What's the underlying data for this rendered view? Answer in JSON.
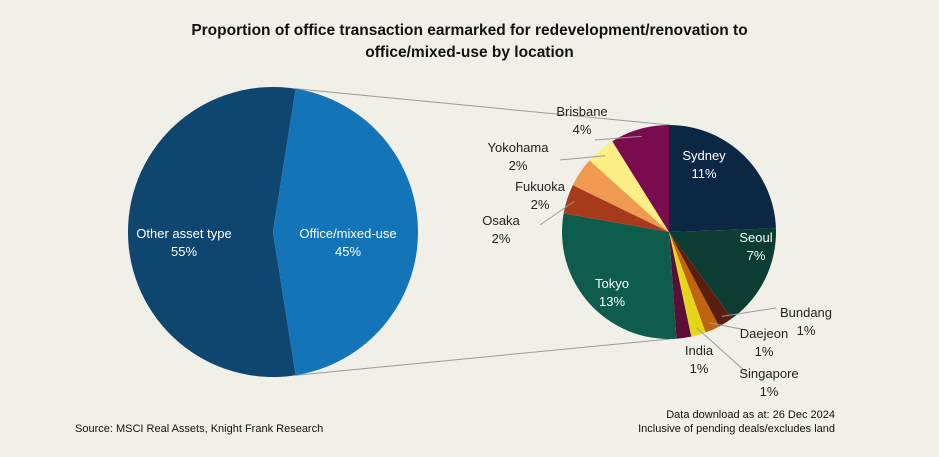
{
  "chart_data": {
    "type": "pie",
    "title_line1": "Proportion of office transaction earmarked for redevelopment/renovation to",
    "title_line2": "office/mixed-use by location",
    "main": [
      {
        "name": "Other asset type",
        "value": 55,
        "label": "55%",
        "color": "#0e4670",
        "text_color": "#ffffff"
      },
      {
        "name": "Office/mixed-use",
        "value": 45,
        "label": "45%",
        "color": "#1474b8",
        "text_color": "#ffffff"
      }
    ],
    "breakdown": [
      {
        "name": "Sydney",
        "value": 11,
        "label": "11%",
        "color": "#0b2744",
        "text_color": "#ffffff",
        "label_inside": true
      },
      {
        "name": "Seoul",
        "value": 7,
        "label": "7%",
        "color": "#0b3d32",
        "text_color": "#ffffff",
        "label_inside": true
      },
      {
        "name": "Bundang",
        "value": 1,
        "label": "1%",
        "color": "#5a1e10",
        "text_color": "#222222",
        "label_inside": false
      },
      {
        "name": "Daejeon",
        "value": 1,
        "label": "1%",
        "color": "#c0650f",
        "text_color": "#222222",
        "label_inside": false
      },
      {
        "name": "Singapore",
        "value": 1,
        "label": "1%",
        "color": "#e6d61a",
        "text_color": "#222222",
        "label_inside": false
      },
      {
        "name": "India",
        "value": 1,
        "label": "1%",
        "color": "#5a0e38",
        "text_color": "#222222",
        "label_inside": false
      },
      {
        "name": "Tokyo",
        "value": 13,
        "label": "13%",
        "color": "#0d5c4c",
        "text_color": "#ffffff",
        "label_inside": true
      },
      {
        "name": "Osaka",
        "value": 2,
        "label": "2%",
        "color": "#a83a1c",
        "text_color": "#222222",
        "label_inside": false
      },
      {
        "name": "Fukuoka",
        "value": 2,
        "label": "2%",
        "color": "#ef9a50",
        "text_color": "#222222",
        "label_inside": false
      },
      {
        "name": "Yokohama",
        "value": 2,
        "label": "2%",
        "color": "#fbee84",
        "text_color": "#222222",
        "label_inside": false
      },
      {
        "name": "Brisbane",
        "value": 4,
        "label": "4%",
        "color": "#7a0b4e",
        "text_color": "#222222",
        "label_inside": false
      }
    ]
  },
  "source": "Source: MSCI Real Assets, Knight Frank Research",
  "note_line1": "Data download as at: 26 Dec 2024",
  "note_line2": "Inclusive of pending deals/excludes land"
}
